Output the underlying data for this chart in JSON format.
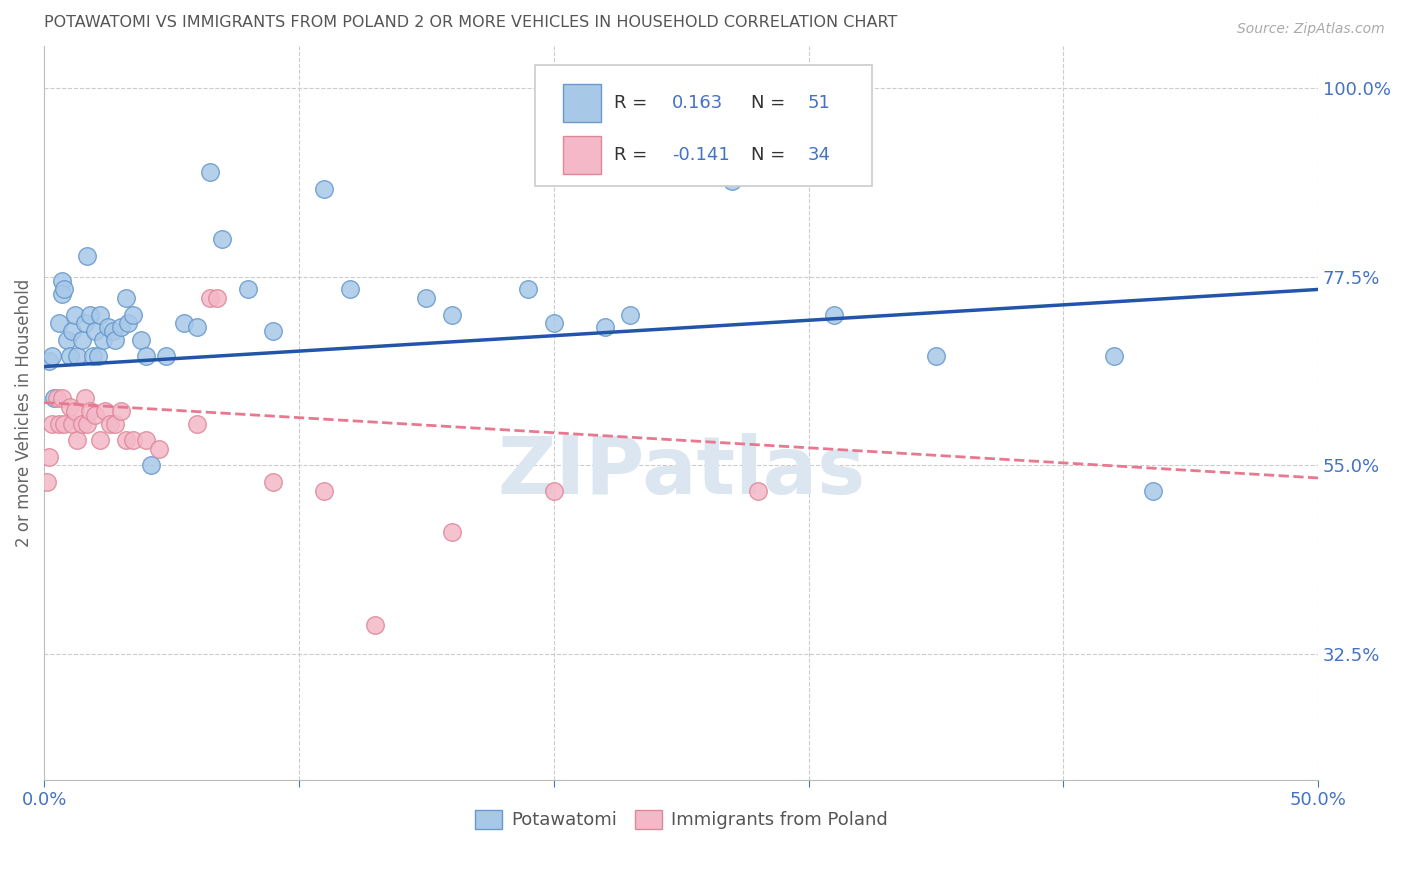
{
  "title": "POTAWATOMI VS IMMIGRANTS FROM POLAND 2 OR MORE VEHICLES IN HOUSEHOLD CORRELATION CHART",
  "source": "Source: ZipAtlas.com",
  "ylabel": "2 or more Vehicles in Household",
  "xlim": [
    0.0,
    0.5
  ],
  "ylim": [
    0.175,
    1.05
  ],
  "xticks": [
    0.0,
    0.1,
    0.2,
    0.3,
    0.4,
    0.5
  ],
  "yticks_right": [
    0.325,
    0.55,
    0.775,
    1.0
  ],
  "yticklabels_right": [
    "32.5%",
    "55.0%",
    "77.5%",
    "100.0%"
  ],
  "blue_color": "#a8c8e8",
  "pink_color": "#f4b8c8",
  "blue_line_color": "#2255aa",
  "pink_line_color": "#e87890",
  "blue_edge_color": "#6699cc",
  "pink_edge_color": "#dd8899",
  "legend_label_blue": "Potawatomi",
  "legend_label_pink": "Immigrants from Poland",
  "blue_scatter": [
    [
      0.002,
      0.675
    ],
    [
      0.003,
      0.68
    ],
    [
      0.004,
      0.63
    ],
    [
      0.006,
      0.72
    ],
    [
      0.007,
      0.77
    ],
    [
      0.007,
      0.755
    ],
    [
      0.008,
      0.76
    ],
    [
      0.009,
      0.7
    ],
    [
      0.01,
      0.68
    ],
    [
      0.011,
      0.71
    ],
    [
      0.012,
      0.73
    ],
    [
      0.013,
      0.68
    ],
    [
      0.015,
      0.7
    ],
    [
      0.016,
      0.72
    ],
    [
      0.017,
      0.8
    ],
    [
      0.018,
      0.73
    ],
    [
      0.019,
      0.68
    ],
    [
      0.02,
      0.71
    ],
    [
      0.021,
      0.68
    ],
    [
      0.022,
      0.73
    ],
    [
      0.023,
      0.7
    ],
    [
      0.025,
      0.715
    ],
    [
      0.027,
      0.71
    ],
    [
      0.028,
      0.7
    ],
    [
      0.03,
      0.715
    ],
    [
      0.032,
      0.75
    ],
    [
      0.033,
      0.72
    ],
    [
      0.035,
      0.73
    ],
    [
      0.038,
      0.7
    ],
    [
      0.04,
      0.68
    ],
    [
      0.042,
      0.55
    ],
    [
      0.048,
      0.68
    ],
    [
      0.055,
      0.72
    ],
    [
      0.06,
      0.715
    ],
    [
      0.065,
      0.9
    ],
    [
      0.07,
      0.82
    ],
    [
      0.08,
      0.76
    ],
    [
      0.09,
      0.71
    ],
    [
      0.11,
      0.88
    ],
    [
      0.12,
      0.76
    ],
    [
      0.15,
      0.75
    ],
    [
      0.16,
      0.73
    ],
    [
      0.2,
      0.72
    ],
    [
      0.22,
      0.715
    ],
    [
      0.23,
      0.73
    ],
    [
      0.27,
      0.89
    ],
    [
      0.31,
      0.73
    ],
    [
      0.35,
      0.68
    ],
    [
      0.42,
      0.68
    ],
    [
      0.435,
      0.52
    ],
    [
      0.19,
      0.76
    ]
  ],
  "pink_scatter": [
    [
      0.001,
      0.53
    ],
    [
      0.002,
      0.56
    ],
    [
      0.003,
      0.6
    ],
    [
      0.005,
      0.63
    ],
    [
      0.006,
      0.6
    ],
    [
      0.007,
      0.63
    ],
    [
      0.008,
      0.6
    ],
    [
      0.01,
      0.62
    ],
    [
      0.011,
      0.6
    ],
    [
      0.012,
      0.615
    ],
    [
      0.013,
      0.58
    ],
    [
      0.015,
      0.6
    ],
    [
      0.016,
      0.63
    ],
    [
      0.017,
      0.6
    ],
    [
      0.018,
      0.615
    ],
    [
      0.02,
      0.61
    ],
    [
      0.022,
      0.58
    ],
    [
      0.024,
      0.615
    ],
    [
      0.026,
      0.6
    ],
    [
      0.028,
      0.6
    ],
    [
      0.03,
      0.615
    ],
    [
      0.032,
      0.58
    ],
    [
      0.035,
      0.58
    ],
    [
      0.04,
      0.58
    ],
    [
      0.045,
      0.57
    ],
    [
      0.06,
      0.6
    ],
    [
      0.065,
      0.75
    ],
    [
      0.068,
      0.75
    ],
    [
      0.09,
      0.53
    ],
    [
      0.11,
      0.52
    ],
    [
      0.13,
      0.36
    ],
    [
      0.16,
      0.47
    ],
    [
      0.2,
      0.52
    ],
    [
      0.28,
      0.52
    ]
  ],
  "blue_trend_x": [
    0.0,
    0.5
  ],
  "blue_trend_y": [
    0.668,
    0.76
  ],
  "pink_trend_x": [
    0.0,
    0.5
  ],
  "pink_trend_y": [
    0.625,
    0.535
  ],
  "watermark": "ZIPatlas",
  "watermark_color": "#dce6f0",
  "background_color": "#ffffff",
  "grid_color": "#cccccc",
  "title_color": "#555555",
  "axis_label_color": "#666666",
  "tick_color_right": "#4472c4",
  "tick_color_bottom": "#4472c4",
  "label_text_color": "#333333",
  "value_text_color": "#4472c4"
}
